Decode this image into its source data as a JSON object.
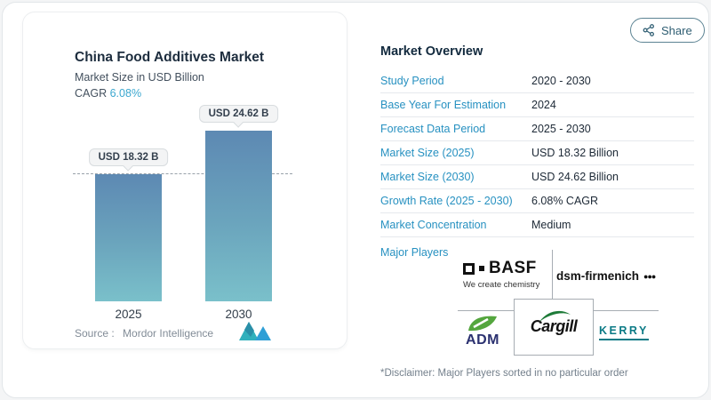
{
  "share": {
    "label": "Share"
  },
  "chart_card": {
    "title": "China Food Additives Market",
    "subtitle": "Market Size in USD Billion",
    "cagr_label": "CAGR",
    "cagr_value": "6.08%",
    "source_label": "Source :",
    "source_value": "Mordor Intelligence"
  },
  "chart_data": {
    "type": "bar",
    "title": "China Food Additives Market",
    "subtitle": "Market Size in USD Billion",
    "categories": [
      "2025",
      "2030"
    ],
    "values": [
      18.32,
      24.62
    ],
    "value_labels": [
      "USD 18.32 B",
      "USD 24.62 B"
    ],
    "unit": "USD Billion",
    "cagr": "6.08%",
    "reference_line": 18.32,
    "ylim": [
      0,
      24.62
    ],
    "grid": false,
    "bar_color_top": "#5d89b3",
    "bar_color_bottom": "#7ac0ca"
  },
  "overview": {
    "title": "Market Overview",
    "rows": [
      {
        "label": "Study Period",
        "value": "2020 - 2030"
      },
      {
        "label": "Base Year For Estimation",
        "value": "2024"
      },
      {
        "label": "Forecast Data Period",
        "value": "2025 - 2030"
      },
      {
        "label": "Market Size (2025)",
        "value": "USD 18.32 Billion"
      },
      {
        "label": "Market Size (2030)",
        "value": "USD 24.62 Billion"
      },
      {
        "label": "Growth Rate (2025 - 2030)",
        "value": "6.08% CAGR"
      },
      {
        "label": "Market Concentration",
        "value": "Medium"
      }
    ],
    "major_players_label": "Major Players",
    "players": [
      "BASF",
      "dsm-firmenich",
      "ADM",
      "Cargill",
      "KERRY"
    ],
    "basf_tagline": "We create chemistry",
    "dsm_dots": "●●●",
    "disclaimer": "*Disclaimer: Major Players sorted in no particular order"
  },
  "colors": {
    "accent_blue": "#2791c1",
    "heading_navy": "#122a3e",
    "cagr_teal": "#3ba7cf",
    "share_teal": "#2e5d72",
    "kerry_teal": "#0b7a85",
    "adm_navy": "#2b3170",
    "adm_green": "#54a63e",
    "cargill_green": "#1e7b38",
    "mordor_teal": "#31b0bc",
    "mordor_blue": "#2f9fd6"
  }
}
